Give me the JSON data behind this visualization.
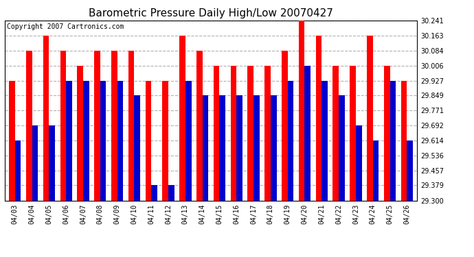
{
  "title": "Barometric Pressure Daily High/Low 20070427",
  "copyright": "Copyright 2007 Cartronics.com",
  "dates": [
    "04/03",
    "04/04",
    "04/05",
    "04/06",
    "04/07",
    "04/08",
    "04/09",
    "04/10",
    "04/11",
    "04/12",
    "04/13",
    "04/14",
    "04/15",
    "04/16",
    "04/17",
    "04/18",
    "04/19",
    "04/20",
    "04/21",
    "04/22",
    "04/23",
    "04/24",
    "04/25",
    "04/26"
  ],
  "highs": [
    29.927,
    30.084,
    30.163,
    30.084,
    30.006,
    30.084,
    30.084,
    30.084,
    29.927,
    29.927,
    30.163,
    30.084,
    30.006,
    30.006,
    30.006,
    30.006,
    30.084,
    30.241,
    30.163,
    30.006,
    30.006,
    30.163,
    30.006,
    29.927
  ],
  "lows": [
    29.614,
    29.692,
    29.692,
    29.927,
    29.927,
    29.927,
    29.927,
    29.849,
    29.379,
    29.379,
    29.927,
    29.849,
    29.849,
    29.849,
    29.849,
    29.849,
    29.927,
    30.006,
    29.927,
    29.849,
    29.692,
    29.614,
    29.927,
    29.614
  ],
  "high_color": "#ff0000",
  "low_color": "#0000cc",
  "background_color": "#ffffff",
  "plot_bg_color": "#ffffff",
  "grid_color": "#b0b0b0",
  "ylim_min": 29.3,
  "ylim_max": 30.241,
  "yticks": [
    29.3,
    29.379,
    29.457,
    29.536,
    29.614,
    29.692,
    29.771,
    29.849,
    29.927,
    30.006,
    30.084,
    30.163,
    30.241
  ],
  "title_fontsize": 11,
  "copyright_fontsize": 7,
  "tick_fontsize": 7,
  "bar_width": 0.35
}
